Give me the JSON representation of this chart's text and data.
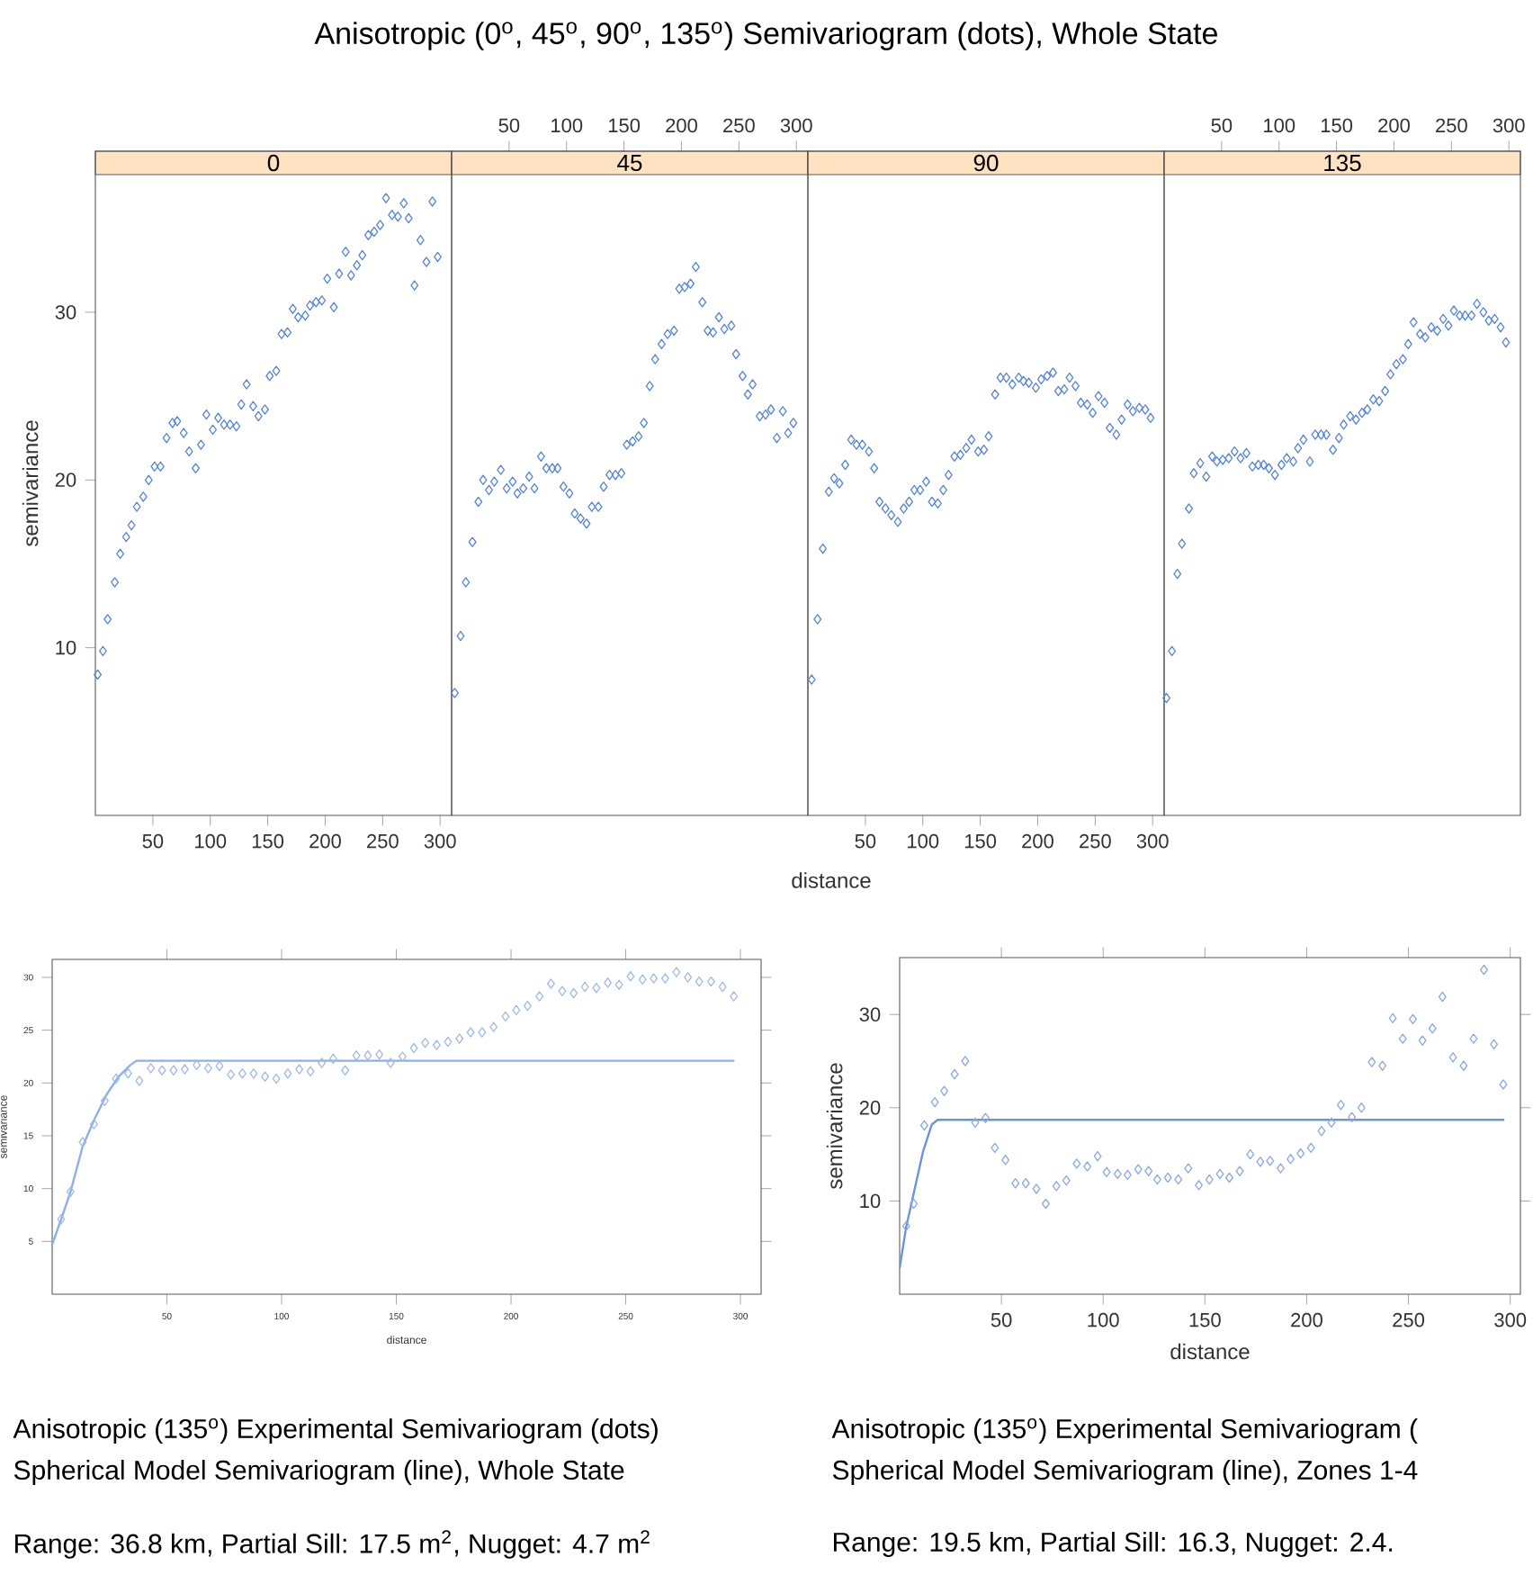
{
  "chart_data": [
    {
      "type": "other",
      "title": "Anisotropic (0$^{o}$, 45$^{o}$, 90$^{o}$, 135$^{o}$) Semivariogram (dots), Whole State"
    },
    {
      "type": "scatter",
      "title": "0",
      "ylabel": "semivariance",
      "color": "#5a87d0",
      "marker": "diamond",
      "xlim": [
        0,
        310
      ],
      "xticks": [
        50,
        100,
        150,
        200,
        250,
        300
      ],
      "ylim": [
        0,
        39.6
      ],
      "yticks": [
        10,
        20,
        30
      ],
      "x": [
        2,
        6.6,
        10.7,
        16.9,
        21.6,
        26.8,
        31.4,
        36.1,
        41.7,
        46.4,
        51.5,
        56.7,
        61.9,
        67.1,
        71.2,
        76.9,
        81.6,
        87.3,
        91.9,
        96.6,
        102.2,
        106.9,
        112,
        117.2,
        122.8,
        127,
        131.6,
        137.3,
        141.9,
        147.6,
        151.7,
        157.4,
        162,
        167.2,
        171.8,
        176.5,
        182.7,
        186.8,
        192,
        197.1,
        201.8,
        207.5,
        212.1,
        217.8,
        222.5,
        227.6,
        232.3,
        237.5,
        242.6,
        247.8,
        252.9,
        258.1,
        263.3,
        268.4,
        272.6,
        277.7,
        282.9,
        288.1,
        293.3,
        297.9
      ],
      "values": [
        8.4,
        9.8,
        11.7,
        13.9,
        15.6,
        16.6,
        17.3,
        18.4,
        19,
        20,
        20.8,
        20.8,
        22.5,
        23.4,
        23.5,
        22.8,
        21.7,
        20.7,
        22.1,
        23.9,
        23,
        23.7,
        23.3,
        23.3,
        23.2,
        24.5,
        25.7,
        24.4,
        23.8,
        24.2,
        26.2,
        26.5,
        28.7,
        28.8,
        30.2,
        29.7,
        29.8,
        30.4,
        30.6,
        30.7,
        32,
        30.3,
        32.3,
        33.6,
        32.2,
        32.8,
        33.4,
        34.6,
        34.8,
        35.2,
        36.8,
        35.8,
        35.7,
        36.5,
        35.6,
        31.6,
        34.3,
        33,
        36.6,
        33.3
      ]
    },
    {
      "type": "scatter",
      "title": "45",
      "color": "#5a87d0",
      "marker": "diamond",
      "xlim": [
        0,
        310
      ],
      "xticks": [
        50,
        100,
        150,
        200,
        250,
        300
      ],
      "ylim": [
        0,
        39.6
      ],
      "yticks": [
        10,
        20,
        30
      ],
      "tick_labels": "x",
      "x": [
        2.7,
        7.8,
        12.4,
        18.1,
        23.3,
        27.4,
        32.5,
        37.1,
        42.8,
        47.9,
        53.1,
        57.2,
        62.3,
        67.5,
        72.1,
        77.8,
        82.4,
        87.6,
        92.2,
        97.3,
        102.5,
        107.1,
        112.2,
        117.4,
        122,
        127.7,
        132.3,
        137.4,
        142.6,
        147.7,
        152.4,
        157.5,
        162.7,
        167.3,
        172.4,
        177.1,
        182.7,
        187.9,
        193.5,
        198.1,
        202.8,
        207.9,
        212.5,
        218.2,
        222.8,
        227.5,
        232.6,
        237.3,
        243.4,
        247.5,
        253.2,
        257.8,
        261.9,
        268.1,
        273.2,
        277.9,
        283,
        288.2,
        292.8,
        297.4
      ],
      "values": [
        7.3,
        10.7,
        13.9,
        16.3,
        18.7,
        20,
        19.4,
        19.9,
        20.6,
        19.5,
        19.9,
        19.2,
        19.5,
        20.2,
        19.5,
        21.4,
        20.7,
        20.7,
        20.7,
        19.6,
        19.2,
        18,
        17.7,
        17.4,
        18.4,
        18.4,
        19.6,
        20.3,
        20.3,
        20.4,
        22.1,
        22.3,
        22.6,
        23.4,
        25.6,
        27.2,
        28.1,
        28.7,
        28.9,
        31.4,
        31.5,
        31.7,
        32.7,
        30.6,
        28.9,
        28.8,
        29.7,
        29,
        29.2,
        27.5,
        26.2,
        25.1,
        25.7,
        23.8,
        23.9,
        24.2,
        22.5,
        24.1,
        22.8,
        23.4
      ]
    },
    {
      "type": "scatter",
      "title": "90",
      "xlabel": "distance",
      "color": "#5a87d0",
      "marker": "diamond",
      "xlim": [
        0,
        310
      ],
      "xticks": [
        50,
        100,
        150,
        200,
        250,
        300
      ],
      "ylim": [
        0,
        39.6
      ],
      "yticks": [
        10,
        20,
        30
      ],
      "tick_labels": "x",
      "x": [
        3.3,
        8.4,
        13,
        18.2,
        22.8,
        27.4,
        32.5,
        37.7,
        42.3,
        47.4,
        53.1,
        57.7,
        62.3,
        67.5,
        72.6,
        78.3,
        83.4,
        88.1,
        92.6,
        97.7,
        102.9,
        108,
        113.1,
        117.8,
        122.4,
        127.5,
        132.7,
        137.8,
        142.4,
        148.1,
        153.2,
        157.3,
        162.9,
        167.6,
        172.7,
        177.9,
        183.5,
        187.6,
        192.2,
        198.4,
        203,
        208.2,
        213.3,
        217.9,
        223.1,
        227.7,
        232.9,
        237.5,
        243.1,
        247.8,
        252.9,
        258.1,
        262.7,
        268.4,
        273,
        278.2,
        282.8,
        288.4,
        293.6,
        298.2
      ],
      "values": [
        8.1,
        11.7,
        15.9,
        19.3,
        20.1,
        19.8,
        20.9,
        22.4,
        22.1,
        22.1,
        21.7,
        20.7,
        18.7,
        18.3,
        17.9,
        17.5,
        18.3,
        18.7,
        19.4,
        19.4,
        19.9,
        18.7,
        18.6,
        19.4,
        20.3,
        21.4,
        21.5,
        21.9,
        22.4,
        21.7,
        21.8,
        22.6,
        25.1,
        26.1,
        26.1,
        25.7,
        26.1,
        25.9,
        25.8,
        25.5,
        26,
        26.2,
        26.4,
        25.3,
        25.4,
        26.1,
        25.6,
        24.6,
        24.5,
        24,
        25,
        24.6,
        23.1,
        22.7,
        23.6,
        24.5,
        24.1,
        24.3,
        24.2,
        23.7
      ]
    },
    {
      "type": "scatter",
      "title": "135",
      "color": "#5a87d0",
      "marker": "diamond",
      "xlim": [
        0,
        310
      ],
      "xticks": [
        50,
        100,
        150,
        200,
        250,
        300
      ],
      "ylim": [
        0,
        39.6
      ],
      "yticks": [
        10,
        20,
        30
      ],
      "tick_labels": "x",
      "x": [
        2,
        6.8,
        11.5,
        15.5,
        21.6,
        25.8,
        31.4,
        36.6,
        41.8,
        45.9,
        51,
        56.2,
        61.3,
        66.5,
        71.6,
        76.8,
        81.9,
        86.6,
        91.2,
        96.4,
        102.1,
        106.7,
        112.4,
        116.5,
        121.2,
        126.8,
        131.5,
        136.6,
        141.2,
        146.9,
        152.1,
        156.2,
        161.9,
        167,
        172.2,
        176.8,
        182,
        187.1,
        192.3,
        196.9,
        202.1,
        207.8,
        212.4,
        217,
        222.7,
        227.3,
        232.5,
        237.6,
        242.8,
        247.4,
        252.1,
        257.2,
        261.9,
        267.5,
        272.2,
        277.8,
        282.5,
        287.6,
        292.8,
        297.4
      ],
      "values": [
        7,
        9.8,
        14.4,
        16.2,
        18.3,
        20.4,
        21,
        20.2,
        21.4,
        21.1,
        21.2,
        21.3,
        21.7,
        21.3,
        21.6,
        20.8,
        20.9,
        20.9,
        20.7,
        20.3,
        20.9,
        21.3,
        21.1,
        21.9,
        22.4,
        21.1,
        22.7,
        22.7,
        22.7,
        21.8,
        22.5,
        23.3,
        23.8,
        23.6,
        24,
        24.2,
        24.8,
        24.7,
        25.3,
        26.3,
        26.9,
        27.2,
        28.1,
        29.4,
        28.7,
        28.5,
        29.1,
        28.9,
        29.6,
        29.2,
        30.1,
        29.8,
        29.8,
        29.8,
        30.5,
        30,
        29.5,
        29.6,
        29.1,
        28.2
      ]
    },
    {
      "type": "scatter",
      "xlabel": "distance",
      "ylabel": "semivariance",
      "xlim": [
        0,
        309
      ],
      "xticks": [
        50,
        100,
        150,
        200,
        250,
        300
      ],
      "ylim": [
        0,
        31.7
      ],
      "yticks": [
        5,
        10,
        15,
        20,
        25,
        30
      ],
      "annotations": [
        "Anisotropic (135$^{o}$) Experimental Semivariogram (dots)",
        "Spherical Model Semivariogram (line), Whole State",
        "Range: 36.8 km, Partial Sill: 17.5 m$^{2}$, Nugget: 4.7 m$^{2}$"
      ],
      "series": [
        {
          "type": "scatter",
          "marker": "diamond",
          "color": "#a3bae6",
          "x": [
            3.9,
            8,
            13.3,
            18.2,
            22.9,
            27.8,
            33.1,
            38,
            43,
            47.9,
            52.9,
            57.8,
            63,
            68,
            72.9,
            77.9,
            82.9,
            87.8,
            92.8,
            97.7,
            102.7,
            107.7,
            112.6,
            117.5,
            122.5,
            127.7,
            132.6,
            137.6,
            142.6,
            147.5,
            152.7,
            157.7,
            162.6,
            167.6,
            172.5,
            177.5,
            182.4,
            187.4,
            192.4,
            197.6,
            202.3,
            207.2,
            212.4,
            217.4,
            222.3,
            227.3,
            232.2,
            237.2,
            242.2,
            247.1,
            252.1,
            257.3,
            262.2,
            267.2,
            272.1,
            277.1,
            282,
            287.2,
            292.2,
            297.1
          ],
          "values": [
            7.1,
            9.7,
            14.4,
            16.1,
            18.3,
            20.4,
            20.9,
            20.2,
            21.4,
            21.2,
            21.2,
            21.3,
            21.7,
            21.4,
            21.6,
            20.8,
            20.9,
            20.9,
            20.6,
            20.4,
            20.9,
            21.3,
            21.1,
            21.9,
            22.3,
            21.2,
            22.6,
            22.6,
            22.7,
            21.9,
            22.5,
            23.3,
            23.8,
            23.6,
            23.9,
            24.2,
            24.8,
            24.8,
            25.3,
            26.3,
            26.9,
            27.3,
            28.2,
            29.4,
            28.7,
            28.5,
            29.1,
            29,
            29.5,
            29.3,
            30.1,
            29.8,
            29.9,
            29.9,
            30.5,
            30,
            29.6,
            29.6,
            29.1,
            28.2
          ]
        },
        {
          "type": "line",
          "marker": "none",
          "color": "#8fb0e6",
          "x": [
            0,
            4.1,
            8,
            13.3,
            18.5,
            23.7,
            28.9,
            34.1,
            36.7,
            297.4
          ],
          "values": [
            4.7,
            7.2,
            9.7,
            14,
            16.6,
            18.9,
            20.6,
            21.7,
            22.1,
            22.1
          ]
        }
      ]
    },
    {
      "type": "scatter",
      "xlabel": "distance",
      "ylabel": "semivariance",
      "xlim": [
        0,
        305
      ],
      "xticks": [
        50,
        100,
        150,
        200,
        250,
        300
      ],
      "ylim": [
        0,
        36.1
      ],
      "yticks": [
        10,
        20,
        30
      ],
      "annotations": [
        "Anisotropic (135$^{o}$) Experimental Semivariogram (",
        "Spherical Model Semivariogram (line), Zones 1-4",
        "Range: 19.5 km, Partial Sill: 16.3, Nugget: 2.4."
      ],
      "series": [
        {
          "type": "scatter",
          "marker": "diamond",
          "color": "#8ea9e0",
          "x": [
            3.2,
            6.9,
            12.1,
            17.3,
            21.9,
            27,
            32.2,
            37.1,
            42.2,
            46.8,
            52,
            56.9,
            62,
            67.2,
            71.8,
            77,
            81.9,
            87,
            92.2,
            97.3,
            101.7,
            107.1,
            112,
            117.2,
            122.3,
            126.6,
            131.8,
            136.9,
            141.8,
            147,
            152.2,
            157.4,
            162,
            167.1,
            172.3,
            177.2,
            182,
            187.2,
            192.1,
            197,
            202.1,
            207.3,
            212.2,
            216.8,
            222.2,
            226.9,
            232,
            237.2,
            242.3,
            247.2,
            252.2,
            256.9,
            261.8,
            266.7,
            271.9,
            277.1,
            282,
            287.1,
            292,
            296.6
          ],
          "values": [
            7.3,
            9.7,
            18.1,
            20.6,
            21.8,
            23.6,
            25,
            18.4,
            18.9,
            15.7,
            14.4,
            11.9,
            11.9,
            11.3,
            9.7,
            11.6,
            12.2,
            14,
            13.7,
            14.8,
            13.1,
            12.9,
            12.8,
            13.4,
            13.2,
            12.3,
            12.5,
            12.3,
            13.5,
            11.7,
            12.3,
            12.9,
            12.5,
            13.2,
            15,
            14.2,
            14.3,
            13.5,
            14.5,
            15.1,
            15.7,
            17.5,
            18.4,
            20.3,
            19,
            20,
            24.9,
            24.5,
            29.6,
            27.4,
            29.5,
            27.2,
            28.5,
            31.9,
            25.4,
            24.5,
            27.4,
            34.8,
            26.8,
            22.5
          ]
        },
        {
          "type": "line",
          "marker": "none",
          "color": "#6f93d8",
          "x": [
            0,
            3.2,
            7.2,
            11.5,
            15.8,
            18.7,
            297.1
          ],
          "values": [
            2.8,
            7.2,
            11.1,
            15.3,
            18.2,
            18.7,
            18.7
          ]
        }
      ]
    }
  ]
}
